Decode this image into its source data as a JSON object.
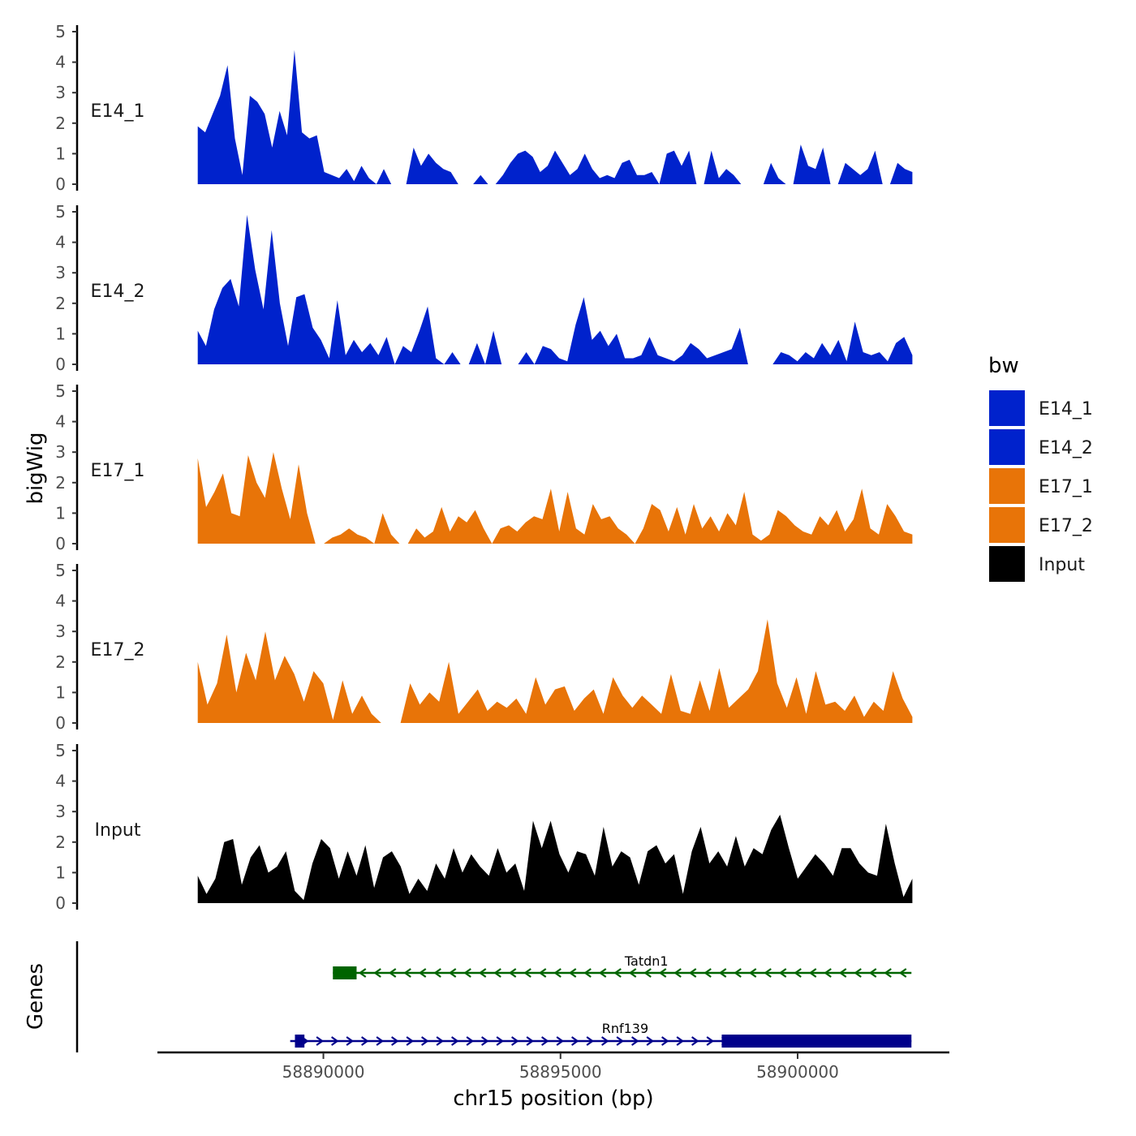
{
  "chart_data": {
    "type": "area",
    "ylabel": "bigWig",
    "xlabel": "chr15 position (bp)",
    "ylim": [
      0,
      5
    ],
    "yticks": [
      0,
      1,
      2,
      3,
      4,
      5
    ],
    "xlim": [
      58886500,
      58903200
    ],
    "xticks": [
      58890000,
      58895000,
      58900000
    ],
    "xtick_labels": [
      "58890000",
      "58895000",
      "58900000"
    ],
    "x_start": 58887350,
    "x_end": 58902420,
    "legend": {
      "title": "bw",
      "position": "right",
      "entries": [
        {
          "name": "E14_1",
          "color": "#0022cc"
        },
        {
          "name": "E14_2",
          "color": "#0022cc"
        },
        {
          "name": "E17_1",
          "color": "#e87408"
        },
        {
          "name": "E17_2",
          "color": "#e87408"
        },
        {
          "name": "Input",
          "color": "#000000"
        }
      ]
    },
    "series": [
      {
        "name": "E14_1",
        "color": "#0022cc",
        "values": [
          1.9,
          1.7,
          2.3,
          2.9,
          3.9,
          1.5,
          0.3,
          2.9,
          2.7,
          2.3,
          1.2,
          2.4,
          1.6,
          4.4,
          1.7,
          1.5,
          1.6,
          0.4,
          0.3,
          0.2,
          0.5,
          0.1,
          0.6,
          0.2,
          0,
          0.5,
          0,
          0,
          0,
          1.2,
          0.6,
          1.0,
          0.7,
          0.5,
          0.4,
          0,
          0,
          0,
          0.3,
          0,
          0,
          0.3,
          0.7,
          1.0,
          1.1,
          0.9,
          0.4,
          0.6,
          1.1,
          0.7,
          0.3,
          0.5,
          1.0,
          0.5,
          0.2,
          0.3,
          0.2,
          0.7,
          0.8,
          0.3,
          0.3,
          0.4,
          0,
          1.0,
          1.1,
          0.6,
          1.1,
          0,
          0,
          1.1,
          0.2,
          0.5,
          0.3,
          0,
          0,
          0,
          0,
          0.7,
          0.2,
          0,
          0,
          1.3,
          0.6,
          0.5,
          1.2,
          0,
          0,
          0.7,
          0.5,
          0.3,
          0.5,
          1.1,
          0,
          0,
          0.7,
          0.5,
          0.4
        ]
      },
      {
        "name": "E14_2",
        "color": "#0022cc",
        "values": [
          1.1,
          0.6,
          1.8,
          2.5,
          2.8,
          1.9,
          4.9,
          3.1,
          1.8,
          4.4,
          2.0,
          0.6,
          2.2,
          2.3,
          1.2,
          0.8,
          0.2,
          2.1,
          0.3,
          0.8,
          0.4,
          0.7,
          0.3,
          0.9,
          0,
          0.6,
          0.4,
          1.1,
          1.9,
          0.2,
          0,
          0.4,
          0,
          0,
          0.7,
          0,
          1.1,
          0,
          0,
          0,
          0.4,
          0,
          0.6,
          0.5,
          0.2,
          0.1,
          1.3,
          2.2,
          0.8,
          1.1,
          0.6,
          1.0,
          0.2,
          0.2,
          0.3,
          0.9,
          0.3,
          0.2,
          0.1,
          0.3,
          0.7,
          0.5,
          0.2,
          0.3,
          0.4,
          0.5,
          1.2,
          0,
          0,
          0,
          0,
          0.4,
          0.3,
          0.1,
          0.4,
          0.2,
          0.7,
          0.3,
          0.8,
          0.1,
          1.4,
          0.4,
          0.3,
          0.4,
          0.1,
          0.7,
          0.9,
          0.3
        ]
      },
      {
        "name": "E17_1",
        "color": "#e87408",
        "values": [
          2.8,
          1.2,
          1.7,
          2.3,
          1.0,
          0.9,
          2.9,
          2.0,
          1.5,
          3.0,
          1.8,
          0.8,
          2.6,
          1.0,
          0,
          0,
          0.2,
          0.3,
          0.5,
          0.3,
          0.2,
          0,
          1.0,
          0.3,
          0,
          0,
          0.5,
          0.2,
          0.4,
          1.2,
          0.4,
          0.9,
          0.7,
          1.1,
          0.5,
          0,
          0.5,
          0.6,
          0.4,
          0.7,
          0.9,
          0.8,
          1.8,
          0.4,
          1.7,
          0.5,
          0.3,
          1.3,
          0.8,
          0.9,
          0.5,
          0.3,
          0,
          0.5,
          1.3,
          1.1,
          0.4,
          1.2,
          0.3,
          1.3,
          0.5,
          0.9,
          0.4,
          1.0,
          0.6,
          1.7,
          0.3,
          0.1,
          0.3,
          1.1,
          0.9,
          0.6,
          0.4,
          0.3,
          0.9,
          0.6,
          1.1,
          0.4,
          0.8,
          1.8,
          0.5,
          0.3,
          1.3,
          0.9,
          0.4,
          0.3
        ]
      },
      {
        "name": "E17_2",
        "color": "#e87408",
        "values": [
          2.0,
          0.6,
          1.3,
          2.9,
          1.0,
          2.3,
          1.4,
          3.0,
          1.4,
          2.2,
          1.6,
          0.7,
          1.7,
          1.3,
          0.1,
          1.4,
          0.3,
          0.9,
          0.3,
          0,
          0,
          0,
          1.3,
          0.6,
          1.0,
          0.7,
          2.0,
          0.3,
          0.7,
          1.1,
          0.4,
          0.7,
          0.5,
          0.8,
          0.3,
          1.5,
          0.6,
          1.1,
          1.2,
          0.4,
          0.8,
          1.1,
          0.3,
          1.5,
          0.9,
          0.5,
          0.9,
          0.6,
          0.3,
          1.6,
          0.4,
          0.3,
          1.4,
          0.4,
          1.8,
          0.5,
          0.8,
          1.1,
          1.7,
          3.4,
          1.3,
          0.5,
          1.5,
          0.3,
          1.7,
          0.6,
          0.7,
          0.4,
          0.9,
          0.2,
          0.7,
          0.4,
          1.7,
          0.8,
          0.2
        ]
      },
      {
        "name": "Input",
        "color": "#000000",
        "values": [
          0.9,
          0.3,
          0.8,
          2.0,
          2.1,
          0.6,
          1.5,
          1.9,
          1.0,
          1.2,
          1.7,
          0.4,
          0.1,
          1.3,
          2.1,
          1.8,
          0.8,
          1.7,
          0.9,
          1.9,
          0.5,
          1.5,
          1.7,
          1.2,
          0.3,
          0.8,
          0.4,
          1.3,
          0.8,
          1.8,
          1.0,
          1.6,
          1.2,
          0.9,
          1.8,
          1.0,
          1.3,
          0.4,
          2.7,
          1.8,
          2.7,
          1.6,
          1.0,
          1.7,
          1.6,
          0.9,
          2.5,
          1.2,
          1.7,
          1.5,
          0.6,
          1.7,
          1.9,
          1.3,
          1.6,
          0.3,
          1.7,
          2.5,
          1.3,
          1.7,
          1.2,
          2.2,
          1.2,
          1.8,
          1.6,
          2.4,
          2.9,
          1.8,
          0.8,
          1.2,
          1.6,
          1.3,
          0.9,
          1.8,
          1.8,
          1.3,
          1.0,
          0.9,
          2.6,
          1.3,
          0.2,
          0.8
        ]
      }
    ],
    "genes": {
      "ylabel": "Genes",
      "items": [
        {
          "name": "Tatdn1",
          "color": "#006400",
          "strand": "-",
          "start": 58890200,
          "end": 58902400,
          "exons": [
            [
              58890200,
              58890700
            ]
          ]
        },
        {
          "name": "Rnf139",
          "color": "#00008b",
          "strand": "+",
          "start": 58889300,
          "end": 58902400,
          "exons": [
            [
              58889400,
              58889600
            ],
            [
              58898400,
              58902400
            ]
          ]
        }
      ]
    }
  }
}
